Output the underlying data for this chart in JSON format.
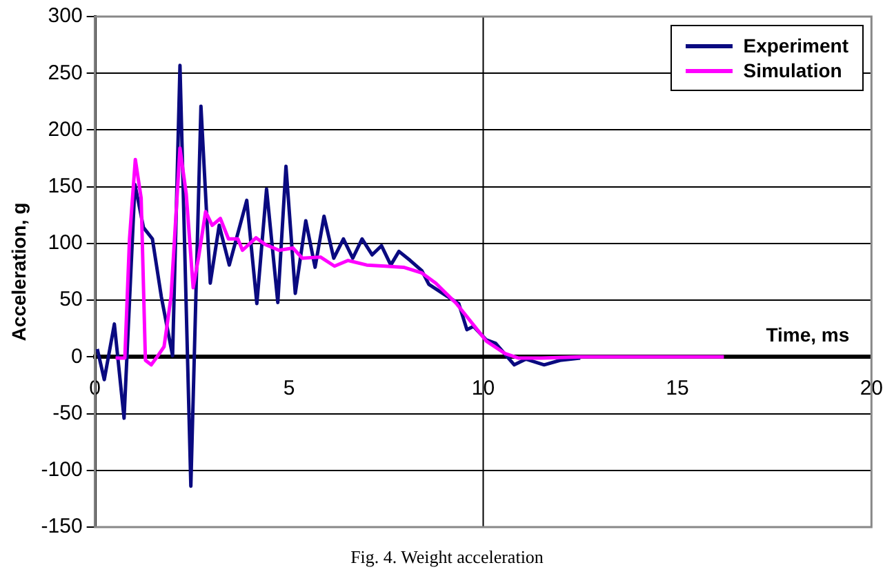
{
  "chart_data": {
    "type": "line",
    "xlabel": "Time, ms",
    "ylabel": "Acceleration, g",
    "xlim": [
      0,
      20
    ],
    "ylim": [
      -150,
      300
    ],
    "xticks": [
      0,
      5,
      10,
      15,
      20
    ],
    "yticks": [
      -150,
      -100,
      -50,
      0,
      50,
      100,
      150,
      200,
      250,
      300
    ],
    "grid": "y",
    "legend": "top right",
    "marker": "none",
    "line_style": "solid",
    "ref_lines": [
      {
        "axis": "x",
        "value": 10,
        "color": "#000000"
      }
    ],
    "annotations": [
      "Fig. 4. Weight acceleration"
    ],
    "series": [
      {
        "name": "Experiment",
        "color": "#0a0a80",
        "x": [
          0.06,
          0.24,
          0.5,
          0.75,
          1.03,
          1.25,
          1.48,
          1.71,
          2.0,
          2.19,
          2.47,
          2.73,
          2.97,
          3.2,
          3.46,
          3.91,
          4.17,
          4.42,
          4.71,
          4.92,
          5.16,
          5.43,
          5.67,
          5.9,
          6.15,
          6.4,
          6.64,
          6.88,
          7.14,
          7.38,
          7.62,
          7.83,
          8.12,
          8.42,
          8.6,
          9.0,
          9.37,
          9.58,
          9.75,
          10.08,
          10.32,
          10.8,
          11.1,
          11.57,
          11.98,
          12.5
        ],
        "values": [
          7,
          -20,
          29,
          -54,
          152,
          114,
          104,
          53,
          1,
          257,
          -114,
          221,
          65,
          116,
          81,
          138,
          47,
          148,
          48,
          168,
          56,
          120,
          79,
          124,
          87,
          104,
          87,
          104,
          90,
          98,
          81,
          93,
          85,
          76,
          64,
          55,
          47,
          24,
          27,
          15,
          12,
          -7,
          -2,
          -7,
          -3,
          -1
        ]
      },
      {
        "name": "Simulation",
        "color": "#ff00ff",
        "x": [
          0.53,
          0.77,
          0.89,
          1.04,
          1.19,
          1.3,
          1.45,
          1.6,
          1.78,
          1.96,
          2.19,
          2.35,
          2.53,
          2.67,
          2.85,
          3.02,
          3.23,
          3.44,
          3.68,
          3.8,
          4.15,
          4.39,
          4.74,
          5.1,
          5.34,
          5.81,
          6.17,
          6.52,
          7.0,
          7.47,
          7.95,
          8.42,
          8.78,
          9.31,
          9.73,
          10.08,
          10.56,
          10.9,
          11.5,
          12.5,
          13.5,
          14.5,
          15.5,
          16.2
        ],
        "values": [
          -1,
          -1,
          104,
          174,
          140,
          -3,
          -7,
          0,
          9,
          53,
          184,
          144,
          61,
          88,
          128,
          116,
          122,
          104,
          104,
          94,
          105,
          99,
          94,
          96,
          87,
          88,
          80,
          85,
          81,
          80,
          79,
          74,
          65,
          47,
          29,
          14,
          3,
          -1,
          -1,
          0,
          0,
          0,
          0,
          0
        ]
      }
    ]
  }
}
